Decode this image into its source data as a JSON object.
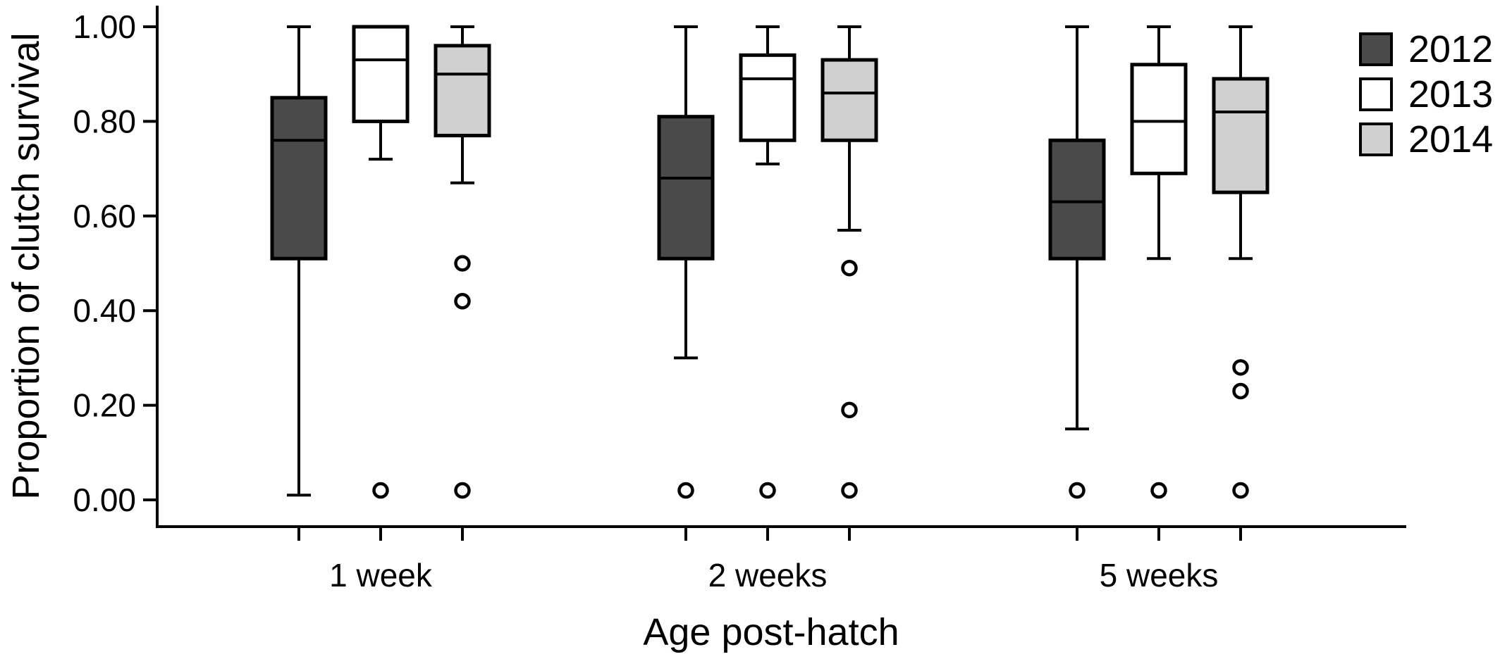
{
  "chart_data": {
    "type": "box",
    "xlabel": "Age post-hatch",
    "ylabel": "Proportion of clutch survival",
    "ylim": [
      0,
      1
    ],
    "yticks": [
      "0.00",
      "0.20",
      "0.40",
      "0.60",
      "0.80",
      "1.00"
    ],
    "categories": [
      "1 week",
      "2 weeks",
      "5 weeks"
    ],
    "legend_position": "right",
    "series": [
      {
        "name": "2012",
        "color": "#4a4a4a",
        "boxes": [
          {
            "whisker_low": 0.01,
            "q1": 0.51,
            "median": 0.76,
            "q3": 0.85,
            "whisker_high": 1.0,
            "outliers": []
          },
          {
            "whisker_low": 0.3,
            "q1": 0.51,
            "median": 0.68,
            "q3": 0.81,
            "whisker_high": 1.0,
            "outliers": [
              0.02
            ]
          },
          {
            "whisker_low": 0.15,
            "q1": 0.51,
            "median": 0.63,
            "q3": 0.76,
            "whisker_high": 1.0,
            "outliers": [
              0.02
            ]
          }
        ]
      },
      {
        "name": "2013",
        "color": "#ffffff",
        "boxes": [
          {
            "whisker_low": 0.72,
            "q1": 0.8,
            "median": 0.93,
            "q3": 1.0,
            "whisker_high": 1.0,
            "outliers": [
              0.02
            ]
          },
          {
            "whisker_low": 0.71,
            "q1": 0.76,
            "median": 0.89,
            "q3": 0.94,
            "whisker_high": 1.0,
            "outliers": [
              0.02
            ]
          },
          {
            "whisker_low": 0.51,
            "q1": 0.69,
            "median": 0.8,
            "q3": 0.92,
            "whisker_high": 1.0,
            "outliers": [
              0.02
            ]
          }
        ]
      },
      {
        "name": "2014",
        "color": "#d0d0d0",
        "boxes": [
          {
            "whisker_low": 0.67,
            "q1": 0.77,
            "median": 0.9,
            "q3": 0.96,
            "whisker_high": 1.0,
            "outliers": [
              0.5,
              0.42,
              0.02
            ]
          },
          {
            "whisker_low": 0.57,
            "q1": 0.76,
            "median": 0.86,
            "q3": 0.93,
            "whisker_high": 1.0,
            "outliers": [
              0.49,
              0.19,
              0.02
            ]
          },
          {
            "whisker_low": 0.51,
            "q1": 0.65,
            "median": 0.82,
            "q3": 0.89,
            "whisker_high": 1.0,
            "outliers": [
              0.28,
              0.23,
              0.02
            ]
          }
        ]
      }
    ]
  }
}
